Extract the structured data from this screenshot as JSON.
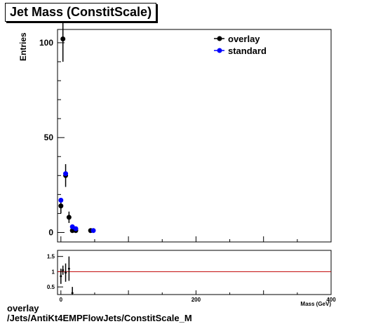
{
  "title": "Jet Mass (ConstitScale)",
  "footer": {
    "line1": "overlay",
    "line2": "/Jets/AntiKt4EMPFlowJets/ConstitScale_M"
  },
  "chart_data": {
    "type": "scatter",
    "ylabel": "Entries",
    "xlabel": "Mass (GeV)",
    "xlim": [
      -5,
      400
    ],
    "ylim": [
      -5,
      107
    ],
    "yticks": [
      0,
      50,
      100
    ],
    "legend_position": "top-right",
    "series": [
      {
        "name": "overlay",
        "color": "#000000",
        "points": [
          {
            "x": 0,
            "y": 14,
            "err": 4
          },
          {
            "x": 3,
            "y": 102,
            "err": 12
          },
          {
            "x": 7,
            "y": 30,
            "err": 6
          },
          {
            "x": 12,
            "y": 8,
            "err": 3
          },
          {
            "x": 17,
            "y": 1,
            "err": 1
          },
          {
            "x": 22,
            "y": 1,
            "err": 1
          },
          {
            "x": 44,
            "y": 1,
            "err": 1
          }
        ]
      },
      {
        "name": "standard",
        "color": "#0000ff",
        "points": [
          {
            "x": 0,
            "y": 17
          },
          {
            "x": 7,
            "y": 31
          },
          {
            "x": 17,
            "y": 3
          },
          {
            "x": 22,
            "y": 2
          },
          {
            "x": 48,
            "y": 1
          }
        ]
      }
    ],
    "ratio": {
      "xlim": [
        -5,
        400
      ],
      "ylim": [
        0.25,
        1.7
      ],
      "yticks": [
        0.5,
        1,
        1.5
      ],
      "xticks": [
        0,
        200,
        400
      ],
      "reference_line": 1,
      "reference_color": "#c00000",
      "points": [
        {
          "x": 0,
          "y": 0.85,
          "err": 0.25
        },
        {
          "x": 3,
          "y": 1.05,
          "err": 0.15
        },
        {
          "x": 7,
          "y": 0.97,
          "err": 0.3
        },
        {
          "x": 12,
          "y": 1.1,
          "err": 0.4
        },
        {
          "x": 17,
          "y": 0.3,
          "err": 0.2
        }
      ]
    }
  }
}
